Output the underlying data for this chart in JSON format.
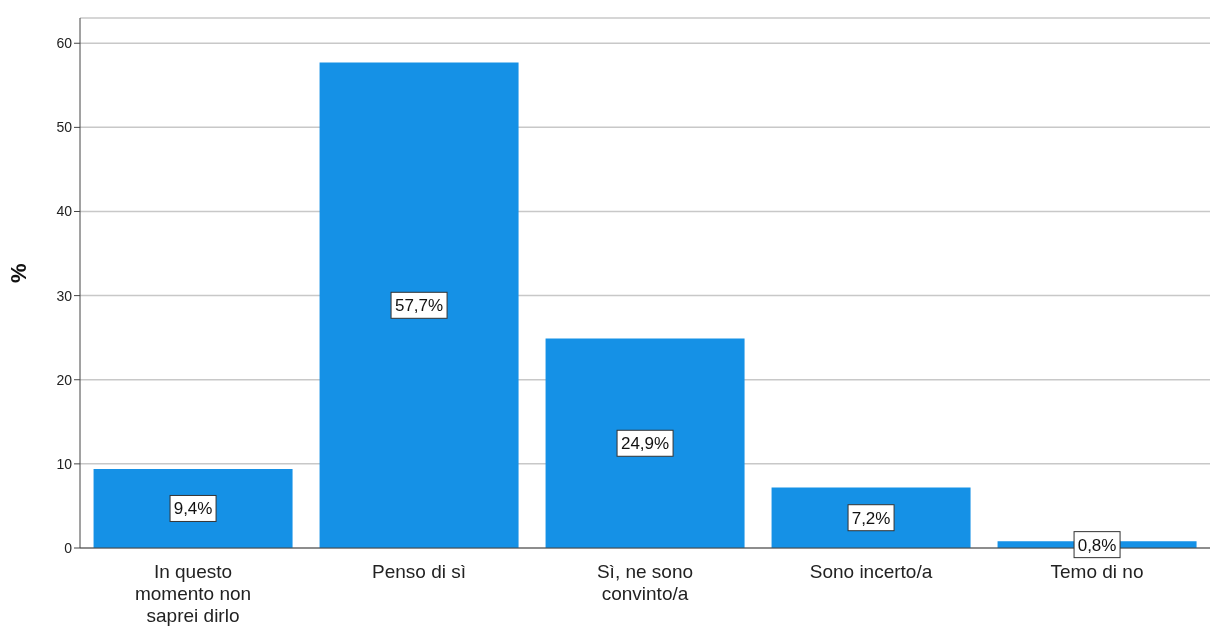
{
  "chart_data": {
    "type": "bar",
    "ylabel": "%",
    "categories": [
      "In questo momento non saprei dirlo",
      "Penso di sì",
      "Sì, ne sono convinto/a",
      "Sono incerto/a",
      "Temo di no"
    ],
    "values": [
      9.4,
      57.7,
      24.9,
      7.2,
      0.8
    ],
    "value_labels": [
      "9,4%",
      "57,7%",
      "24,9%",
      "7,2%",
      "0,8%"
    ],
    "color": "#1591e6",
    "ylim": [
      0,
      63
    ],
    "yticks": [
      0,
      10,
      20,
      30,
      40,
      50,
      60
    ],
    "grid": "y"
  }
}
